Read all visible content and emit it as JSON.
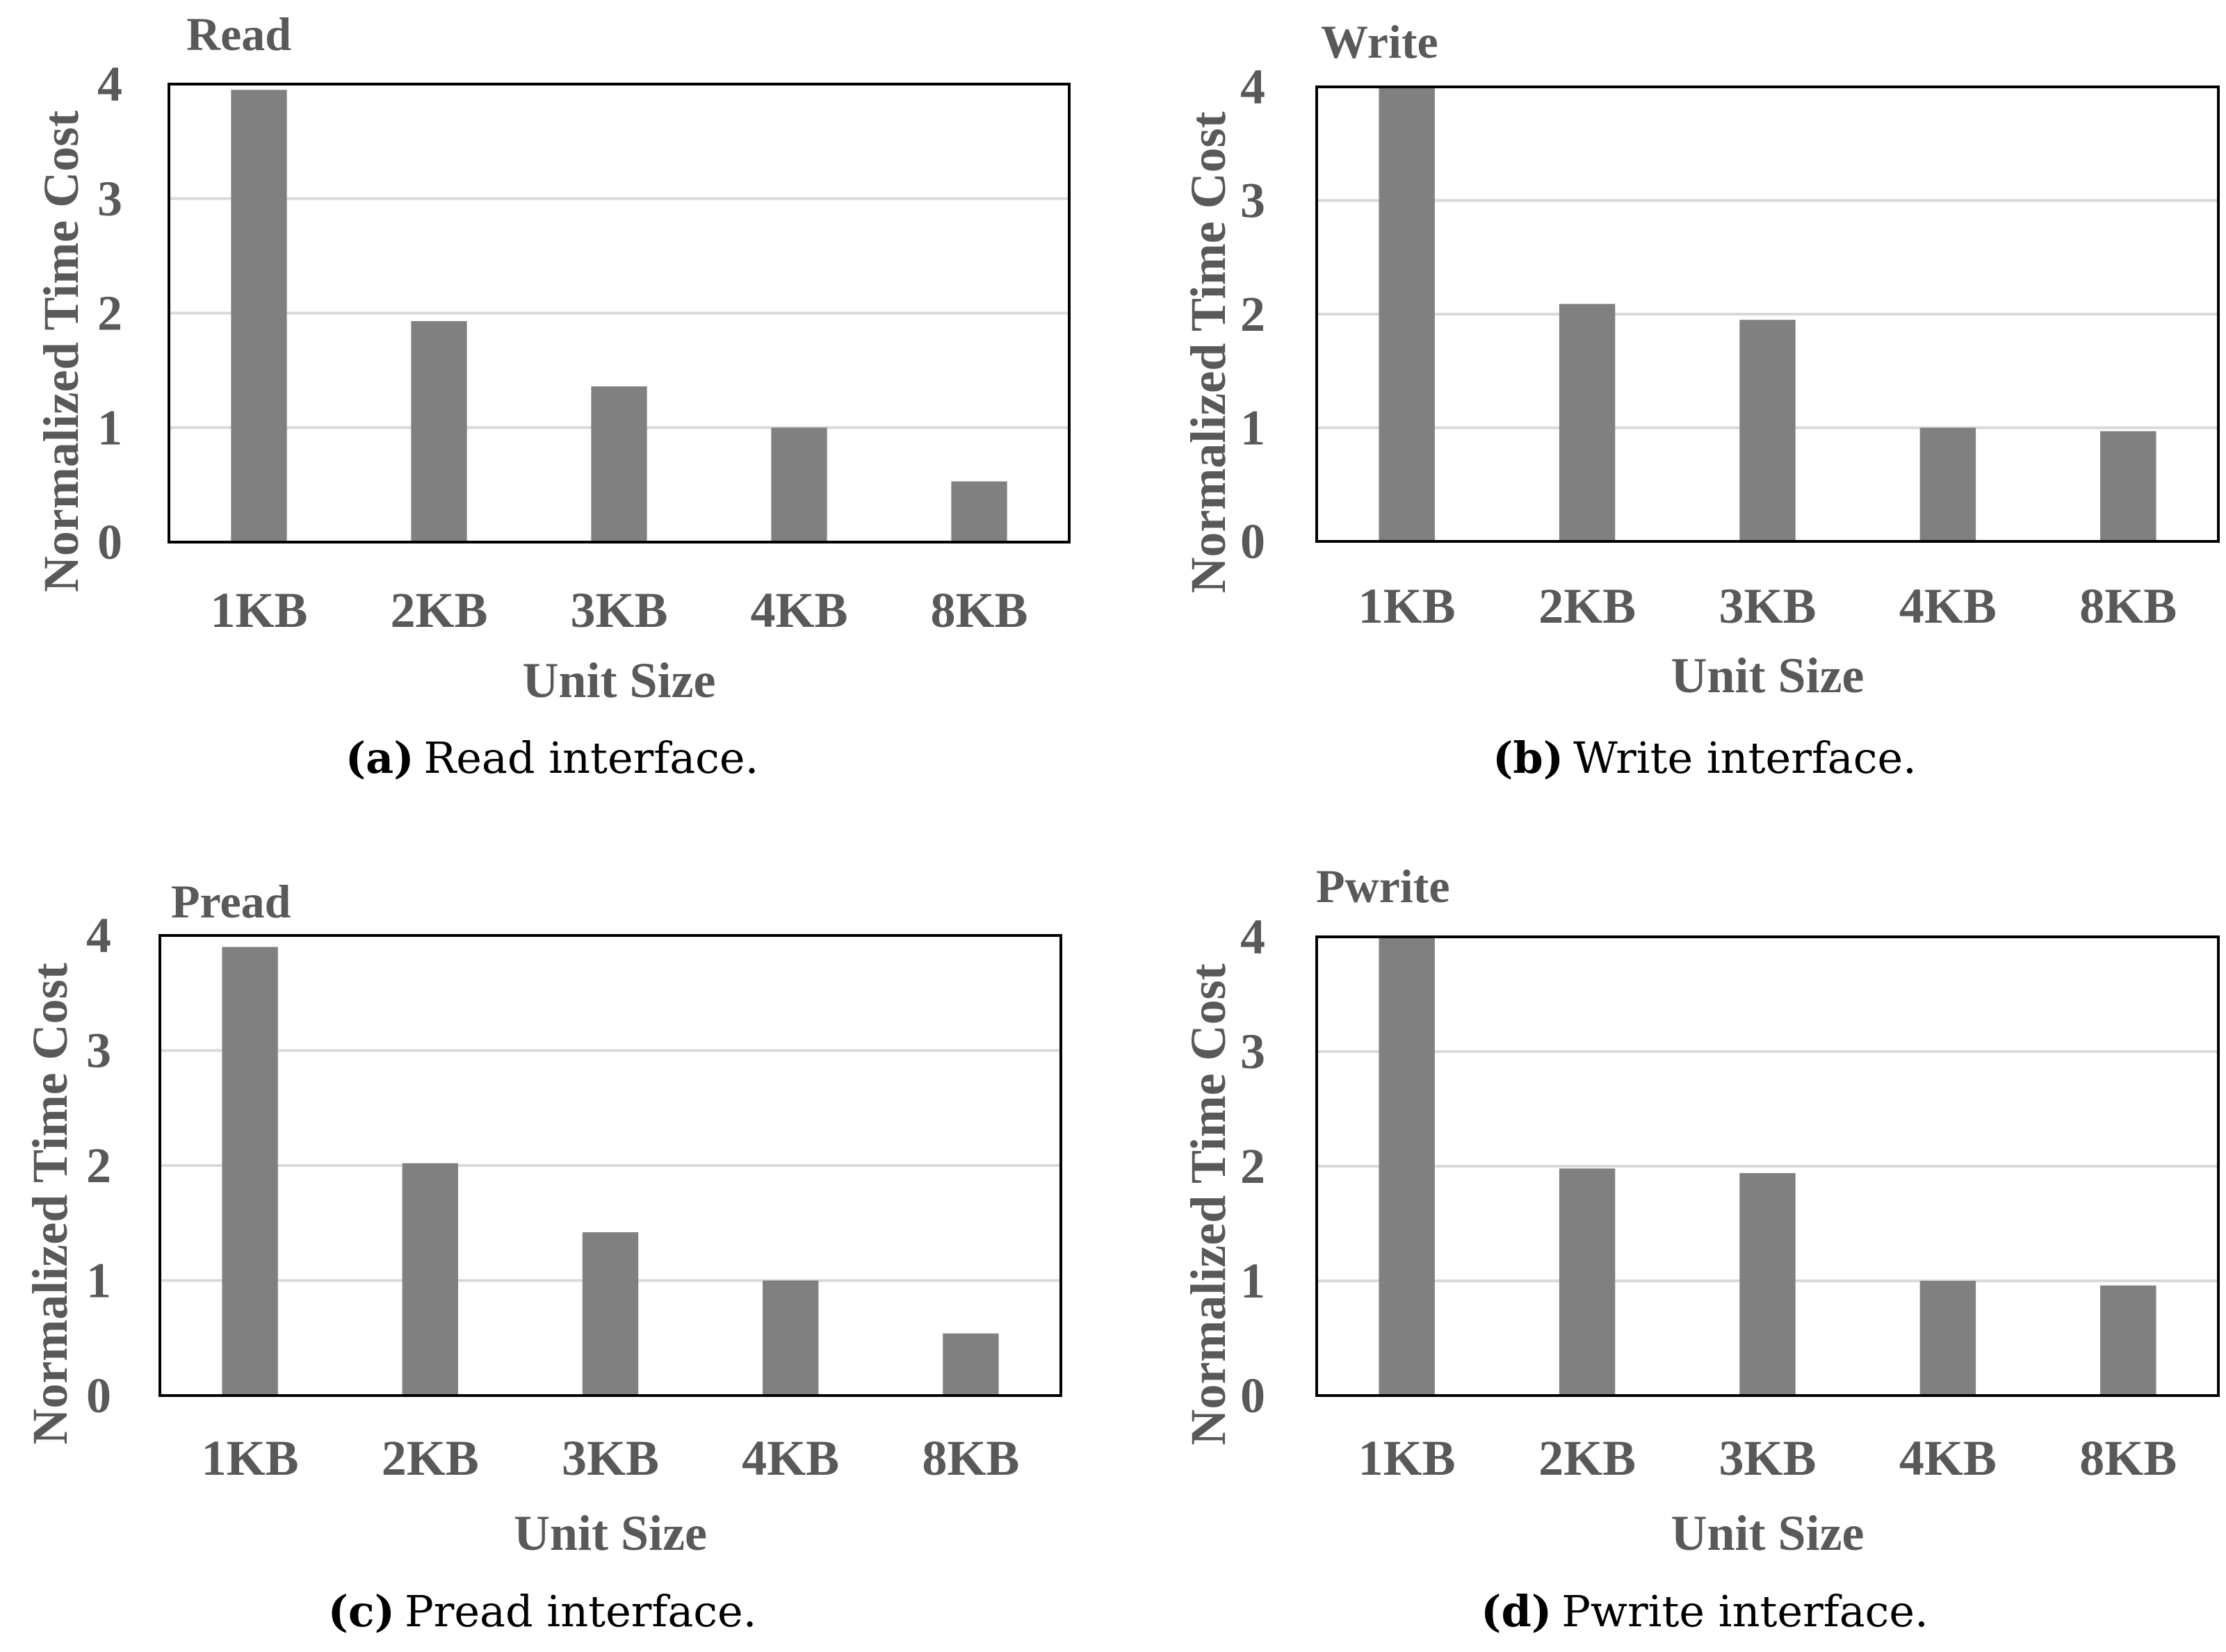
{
  "chart_data": [
    {
      "type": "bar",
      "title": "Read",
      "categories": [
        "1KB",
        "2KB",
        "3KB",
        "4KB",
        "8KB"
      ],
      "values": [
        3.95,
        1.93,
        1.36,
        1.0,
        0.53
      ],
      "xlabel": "Unit Size",
      "ylabel": "Normalized Time Cost",
      "ylim": [
        0,
        4
      ],
      "yticks": [
        "0",
        "1",
        "2",
        "3",
        "4"
      ],
      "grid": true,
      "caption_letter": "(a)",
      "caption_text": "Read interface."
    },
    {
      "type": "bar",
      "title": "Write",
      "categories": [
        "1KB",
        "2KB",
        "3KB",
        "4KB",
        "8KB"
      ],
      "values": [
        4.0,
        2.09,
        1.95,
        1.0,
        0.97
      ],
      "xlabel": "Unit Size",
      "ylabel": "Normalized Time Cost",
      "ylim": [
        0,
        4
      ],
      "yticks": [
        "0",
        "1",
        "2",
        "3",
        "4"
      ],
      "grid": true,
      "caption_letter": "(b)",
      "caption_text": "Write interface."
    },
    {
      "type": "bar",
      "title": "Pread",
      "categories": [
        "1KB",
        "2KB",
        "3KB",
        "4KB",
        "8KB"
      ],
      "values": [
        3.9,
        2.02,
        1.42,
        1.0,
        0.54
      ],
      "xlabel": "Unit Size",
      "ylabel": "Normalized Time Cost",
      "ylim": [
        0,
        4
      ],
      "yticks": [
        "0",
        "1",
        "2",
        "3",
        "4"
      ],
      "grid": true,
      "caption_letter": "(c)",
      "caption_text": "Pread interface."
    },
    {
      "type": "bar",
      "title": "Pwrite",
      "categories": [
        "1KB",
        "2KB",
        "3KB",
        "4KB",
        "8KB"
      ],
      "values": [
        4.0,
        1.98,
        1.94,
        1.0,
        0.96
      ],
      "xlabel": "Unit Size",
      "ylabel": "Normalized Time Cost",
      "ylim": [
        0,
        4
      ],
      "yticks": [
        "0",
        "1",
        "2",
        "3",
        "4"
      ],
      "grid": true,
      "caption_letter": "(d)",
      "caption_text": "Pwrite interface."
    }
  ]
}
